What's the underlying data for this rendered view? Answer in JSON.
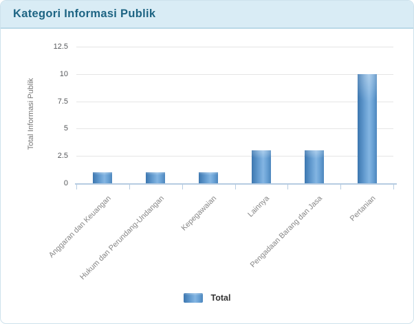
{
  "header": {
    "title": "Kategori Informasi Publik"
  },
  "chart_data": {
    "type": "bar",
    "title": "Kategori Informasi Publik",
    "categories": [
      "Anggaran dan Keuangan",
      "Hukum dan Perundang-Undangan",
      "Kepegawaian",
      "Lainnya",
      "Pengadaan Barang dan Jasa",
      "Pertanian"
    ],
    "series": [
      {
        "name": "Total",
        "values": [
          1,
          1,
          1,
          3,
          3,
          10
        ]
      }
    ],
    "xlabel": "",
    "ylabel": "Total Informasi Publik",
    "ylim": [
      0,
      12.5
    ],
    "yticks": [
      0,
      2.5,
      5,
      7.5,
      10,
      12.5
    ],
    "grid": true,
    "legend_position": "bottom",
    "x_label_rotation_deg": -45
  },
  "legend": {
    "label": "Total"
  },
  "colors": {
    "header_bg": "#d9ecf5",
    "header_border": "#b9d8e7",
    "card_border": "#cde2ec",
    "title_text": "#1d6483",
    "gridline": "#e5e5e5",
    "axis": "#b5cbe1",
    "bar_dark": "#3c76af",
    "bar_mid": "#649cd0",
    "bar_light": "#83b5e2",
    "bar_mid2": "#6ba3d6",
    "bar_edge": "#4c86bd"
  }
}
